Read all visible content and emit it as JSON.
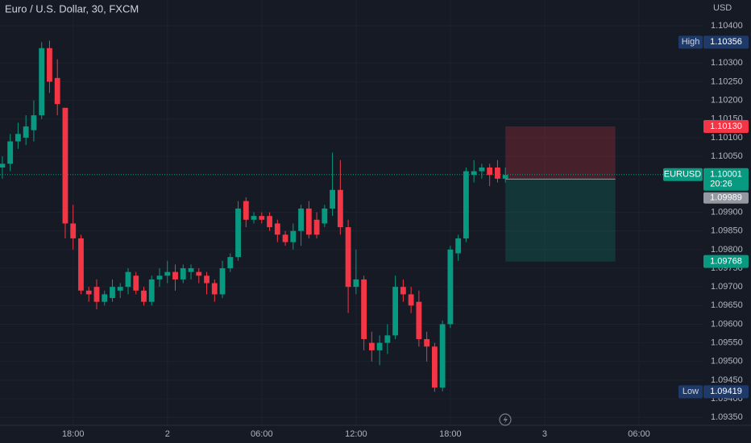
{
  "chart_data": {
    "type": "candlestick",
    "title": "Euro / U.S. Dollar, 30, FXCM",
    "symbol": "EURUSD",
    "currency": "USD",
    "up_color": "#089981",
    "down_color": "#f23645",
    "open": [
      1.1002,
      1.1003,
      1.1009,
      1.101,
      1.1012,
      1.1016,
      1.1034,
      1.1026,
      1.1018,
      1.0987,
      1.0983,
      1.0969,
      1.097,
      1.0966,
      1.0967,
      1.0969,
      1.097,
      1.0973,
      1.0969,
      1.0966,
      1.0972,
      1.0973,
      1.0974,
      1.0972,
      1.0974,
      1.0974,
      1.0973,
      1.0971,
      1.0968,
      1.0975,
      1.0978,
      1.0993,
      1.0988,
      1.0989,
      1.0989,
      1.0987,
      1.0984,
      1.0982,
      1.0985,
      1.0991,
      1.0988,
      1.0987,
      1.0991,
      1.0996,
      1.0986,
      1.097,
      1.0972,
      1.0955,
      1.0953,
      1.0955,
      1.0957,
      1.097,
      1.0968,
      1.0966,
      1.0956,
      1.0954,
      1.0943,
      1.096,
      1.0979,
      1.0983,
      1.1,
      1.1001,
      1.1002,
      1.1002,
      1.0999
    ],
    "high": [
      1.1005,
      1.1011,
      1.1014,
      1.1016,
      1.102,
      1.10356,
      1.1036,
      1.1031,
      1.1018,
      1.0992,
      1.0984,
      1.097,
      1.0972,
      1.0969,
      1.0972,
      1.0971,
      1.0975,
      1.0974,
      1.097,
      1.0973,
      1.0975,
      1.0977,
      1.0976,
      1.0976,
      1.0976,
      1.0975,
      1.0974,
      1.0972,
      1.0977,
      1.0979,
      1.0993,
      1.0994,
      1.099,
      1.099,
      1.099,
      1.0988,
      1.0985,
      1.0987,
      1.0992,
      1.0993,
      1.099,
      1.0992,
      1.1006,
      1.1004,
      1.0988,
      1.098,
      1.0973,
      1.0958,
      1.0957,
      1.096,
      1.0973,
      1.0972,
      1.097,
      1.0969,
      1.0958,
      1.0955,
      1.0961,
      1.0981,
      1.0984,
      1.1002,
      1.1004,
      1.1003,
      1.1003,
      1.1004,
      1.1002
    ],
    "low": [
      1.0999,
      1.1001,
      1.1007,
      1.1008,
      1.1009,
      1.1015,
      1.1022,
      1.1016,
      1.0983,
      1.098,
      1.0968,
      1.0966,
      1.0964,
      1.0965,
      1.0966,
      1.0967,
      1.0968,
      1.0968,
      1.0965,
      1.0965,
      1.097,
      1.0971,
      1.0969,
      1.0971,
      1.0972,
      1.0971,
      1.0968,
      1.0966,
      1.0967,
      1.0974,
      1.0977,
      1.0986,
      1.0987,
      1.0987,
      1.0985,
      1.0982,
      1.0981,
      1.098,
      1.0981,
      1.0983,
      1.0983,
      1.0986,
      1.0989,
      1.0984,
      1.0963,
      1.0968,
      1.0953,
      1.095,
      1.0949,
      1.0952,
      1.0956,
      1.0966,
      1.0963,
      1.0954,
      1.095,
      1.09419,
      1.0942,
      1.0959,
      1.0977,
      1.0982,
      1.0998,
      1.0999,
      1.0997,
      1.0998,
      1.0998
    ],
    "close": [
      1.1003,
      1.1009,
      1.1011,
      1.1013,
      1.1016,
      1.1034,
      1.1025,
      1.1019,
      1.0987,
      1.0983,
      1.0969,
      1.0968,
      1.0966,
      1.0968,
      1.097,
      1.097,
      1.0974,
      1.0969,
      1.0966,
      1.0972,
      1.0973,
      1.0974,
      1.0972,
      1.0975,
      1.0975,
      1.0973,
      1.0971,
      1.0968,
      1.0975,
      1.0978,
      1.0991,
      1.0988,
      1.0989,
      1.0988,
      1.0986,
      1.0984,
      1.0982,
      1.0985,
      1.0991,
      1.0984,
      1.0984,
      1.0991,
      1.0996,
      1.0986,
      1.097,
      1.0972,
      1.0956,
      1.0953,
      1.0955,
      1.0957,
      1.097,
      1.0968,
      1.0965,
      1.0956,
      1.0954,
      1.0943,
      1.096,
      1.098,
      1.0983,
      1.1001,
      1.1001,
      1.1002,
      1.1,
      1.0999,
      1.1
    ],
    "xlim": [
      -0.3,
      89.1
    ],
    "xticks": [
      {
        "value": 9,
        "label": "18:00"
      },
      {
        "value": 21,
        "label": "2"
      },
      {
        "value": 33,
        "label": "06:00"
      },
      {
        "value": 45,
        "label": "12:00"
      },
      {
        "value": 57,
        "label": "18:00"
      },
      {
        "value": 69,
        "label": "3"
      },
      {
        "value": 81,
        "label": "06:00"
      }
    ],
    "ylim": [
      1.09329,
      1.10469
    ],
    "yticks": [
      {
        "value": 1.104,
        "label": "1.10400"
      },
      {
        "value": 1.103,
        "label": "1.10300"
      },
      {
        "value": 1.1025,
        "label": "1.10250"
      },
      {
        "value": 1.102,
        "label": "1.10200"
      },
      {
        "value": 1.1015,
        "label": "1.10150"
      },
      {
        "value": 1.101,
        "label": "1.10100"
      },
      {
        "value": 1.1005,
        "label": "1.10050"
      },
      {
        "value": 1.099,
        "label": "1.09900"
      },
      {
        "value": 1.0985,
        "label": "1.09850"
      },
      {
        "value": 1.098,
        "label": "1.09800"
      },
      {
        "value": 1.0975,
        "label": "1.09750"
      },
      {
        "value": 1.097,
        "label": "1.09700"
      },
      {
        "value": 1.0965,
        "label": "1.09650"
      },
      {
        "value": 1.096,
        "label": "1.09600"
      },
      {
        "value": 1.0955,
        "label": "1.09550"
      },
      {
        "value": 1.095,
        "label": "1.09500"
      },
      {
        "value": 1.0945,
        "label": "1.09450"
      },
      {
        "value": 1.094,
        "label": "1.09400"
      },
      {
        "value": 1.0935,
        "label": "1.09350"
      }
    ],
    "grid": true,
    "high_label": {
      "name": "High",
      "value": 1.10356,
      "label": "1.10356"
    },
    "low_label": {
      "name": "Low",
      "value": 1.09419,
      "label": "1.09419"
    },
    "last_price": {
      "value": 1.10001,
      "label": "1.10001",
      "countdown": "20:26"
    },
    "position": {
      "start": 64,
      "end": 78,
      "entry": {
        "value": 1.09989,
        "label": "1.09989"
      },
      "stop": {
        "value": 1.1013,
        "label": "1.10130",
        "color": "#f23645"
      },
      "target": {
        "value": 1.09768,
        "label": "1.09768",
        "color": "#089981"
      }
    }
  }
}
